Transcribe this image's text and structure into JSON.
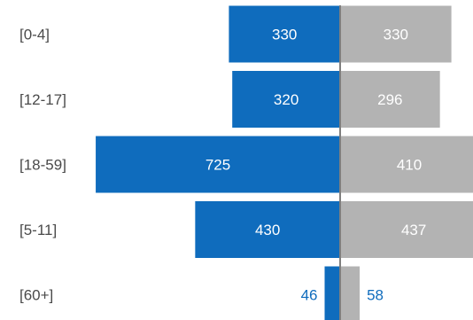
{
  "chart_data": {
    "type": "bar",
    "orientation": "horizontal-butterfly",
    "categories": [
      "[0-4]",
      "[12-17]",
      "[18-59]",
      "[5-11]",
      "[60+]"
    ],
    "series": [
      {
        "values": [
          330,
          320,
          725,
          430,
          46
        ],
        "color": "#0f6cbd",
        "side": "left"
      },
      {
        "values": [
          330,
          296,
          410,
          437,
          58
        ],
        "color": "#b3b3b3",
        "side": "right"
      }
    ],
    "value_labels_shown": true,
    "legend": "none",
    "grid": false,
    "center_axis_color": "#7f7f7f",
    "label_colors": {
      "inside": "#ffffff",
      "outside_left": "#0f6cbd",
      "outside_right": "#0f6cbd",
      "category": "#4a4a4a"
    }
  }
}
